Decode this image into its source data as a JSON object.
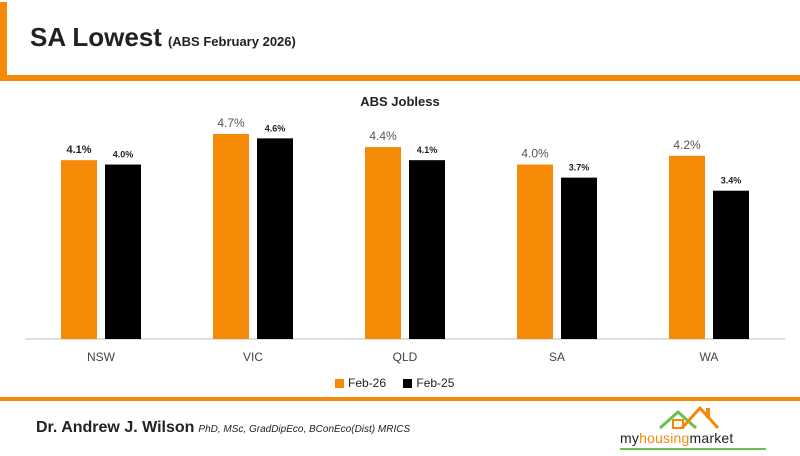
{
  "header": {
    "title": "SA Lowest",
    "subtitle": "(ABS February 2026)"
  },
  "chart_data": {
    "type": "bar",
    "title": "ABS Jobless",
    "categories": [
      "NSW",
      "VIC",
      "QLD",
      "SA",
      "WA"
    ],
    "series": [
      {
        "name": "Feb-26",
        "color": "#f58a07",
        "values": [
          4.1,
          4.7,
          4.4,
          4.0,
          4.2
        ],
        "labels": [
          "4.1%",
          "4.7%",
          "4.4%",
          "4.0%",
          "4.2%"
        ]
      },
      {
        "name": "Feb-25",
        "color": "#000000",
        "values": [
          4.0,
          4.6,
          4.1,
          3.7,
          3.4
        ],
        "labels": [
          "4.0%",
          "4.6%",
          "4.1%",
          "3.7%",
          "3.4%"
        ]
      }
    ],
    "ylim": [
      0,
      4.7
    ],
    "xlabel": "",
    "ylabel": "",
    "grid": false,
    "legend": "bottom"
  },
  "footer": {
    "author": "Dr. Andrew J. Wilson",
    "credentials": "PhD, MSc, GradDipEco, BConEco(Dist) MRICS",
    "brand_prefix": "my",
    "brand_accent": "housing",
    "brand_suffix": "market"
  },
  "colors": {
    "accent": "#f58a07",
    "secondary": "#000000",
    "brand_green": "#6cc04a"
  }
}
